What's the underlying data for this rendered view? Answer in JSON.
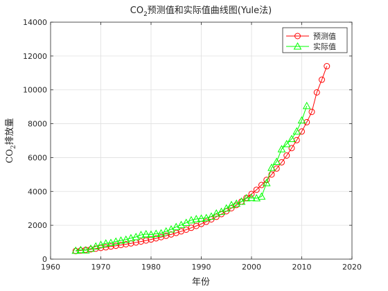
{
  "chart_data": {
    "type": "line",
    "title_main": "CO",
    "title_sub": "2",
    "title_rest": "预测值和实际值曲线图(Yule法)",
    "xlabel": "年份",
    "ylabel_main": "CO",
    "ylabel_sub": "2",
    "ylabel_rest": "排放量",
    "xlim": [
      1960,
      2020
    ],
    "ylim": [
      0,
      14000
    ],
    "xticks": [
      "1960",
      "1970",
      "1980",
      "1990",
      "2000",
      "2010",
      "2020"
    ],
    "yticks": [
      "0",
      "2000",
      "4000",
      "6000",
      "8000",
      "10000",
      "12000",
      "14000"
    ],
    "grid": true,
    "legend_position": "top-right",
    "series": [
      {
        "name": "预测值",
        "color": "#ff0000",
        "marker": "circle",
        "x": [
          1965,
          1966,
          1967,
          1968,
          1969,
          1970,
          1971,
          1972,
          1973,
          1974,
          1975,
          1976,
          1977,
          1978,
          1979,
          1980,
          1981,
          1982,
          1983,
          1984,
          1985,
          1986,
          1987,
          1988,
          1989,
          1990,
          1991,
          1992,
          1993,
          1994,
          1995,
          1996,
          1997,
          1998,
          1999,
          2000,
          2001,
          2002,
          2003,
          2004,
          2005,
          2006,
          2007,
          2008,
          2009,
          2010,
          2011,
          2012,
          2013,
          2014,
          2015
        ],
        "y": [
          480,
          510,
          545,
          580,
          620,
          660,
          700,
          745,
          790,
          835,
          880,
          930,
          985,
          1040,
          1100,
          1160,
          1230,
          1300,
          1380,
          1460,
          1550,
          1640,
          1740,
          1850,
          1960,
          2080,
          2210,
          2350,
          2500,
          2660,
          2830,
          3010,
          3200,
          3400,
          3620,
          3850,
          4100,
          4380,
          4680,
          5000,
          5350,
          5720,
          6120,
          6560,
          7030,
          7540,
          8090,
          8700,
          9850,
          10600,
          11400
        ]
      },
      {
        "name": "实际值",
        "color": "#00ff00",
        "marker": "triangle",
        "x": [
          1965,
          1966,
          1967,
          1968,
          1969,
          1970,
          1971,
          1972,
          1973,
          1974,
          1975,
          1976,
          1977,
          1978,
          1979,
          1980,
          1981,
          1982,
          1983,
          1984,
          1985,
          1986,
          1987,
          1988,
          1989,
          1990,
          1991,
          1992,
          1993,
          1994,
          1995,
          1996,
          1997,
          1998,
          1999,
          2000,
          2001,
          2002,
          2003,
          2004,
          2005,
          2006,
          2007,
          2008,
          2009,
          2010,
          2011
        ],
        "y": [
          500,
          540,
          520,
          620,
          750,
          850,
          930,
          960,
          1040,
          1100,
          1150,
          1240,
          1310,
          1430,
          1480,
          1450,
          1500,
          1530,
          1640,
          1760,
          1900,
          2020,
          2150,
          2300,
          2370,
          2400,
          2430,
          2520,
          2700,
          2800,
          3000,
          3200,
          3280,
          3400,
          3600,
          3620,
          3600,
          3700,
          4500,
          5400,
          5750,
          6500,
          6800,
          7100,
          7550,
          8200,
          9050
        ]
      }
    ]
  }
}
